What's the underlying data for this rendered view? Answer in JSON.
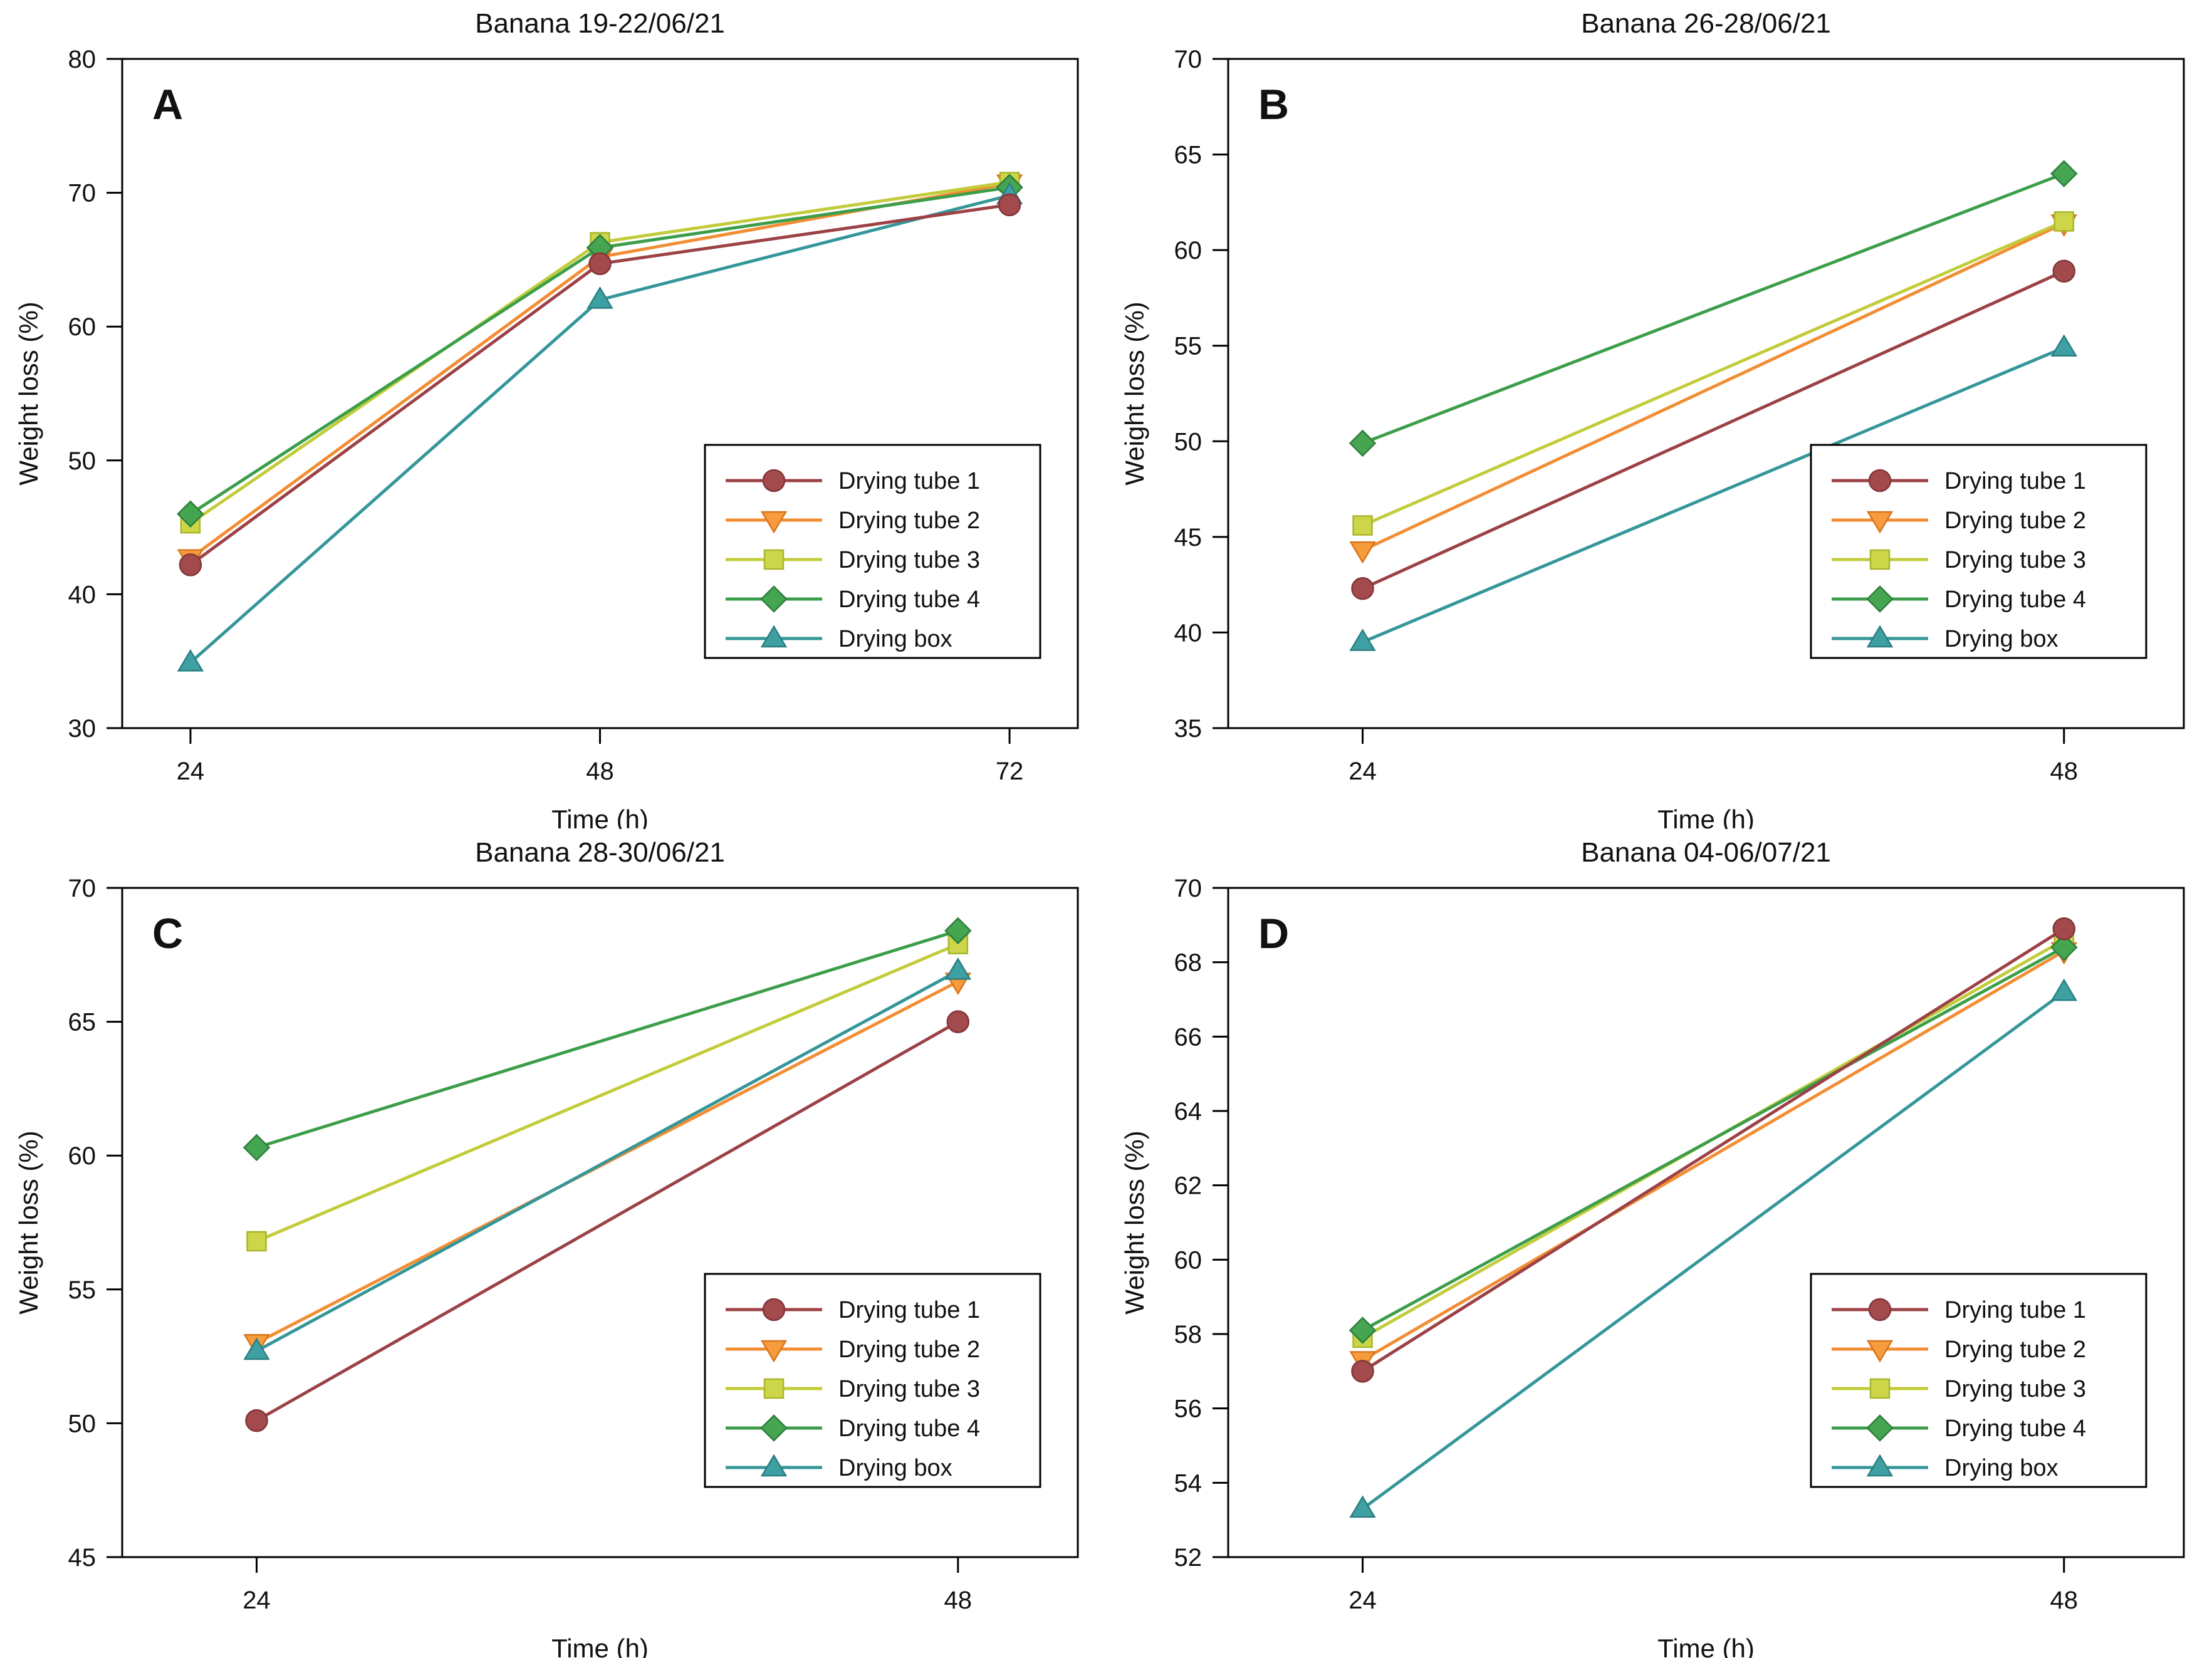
{
  "figure": {
    "background": "#ffffff",
    "x_axis_label": "Time (h)",
    "y_axis_label": "Weight loss (%)"
  },
  "series_defs": [
    {
      "name": "Drying tube 1",
      "marker": "circle",
      "line_color": "#9c4145",
      "marker_fill": "#a34a4c",
      "marker_stroke": "#84353a"
    },
    {
      "name": "Drying tube 2",
      "marker": "triangle-down",
      "line_color": "#f28d33",
      "marker_fill": "#f79c3d",
      "marker_stroke": "#d9751c"
    },
    {
      "name": "Drying tube 3",
      "marker": "square",
      "line_color": "#c2cc3a",
      "marker_fill": "#ccd648",
      "marker_stroke": "#a9b52c"
    },
    {
      "name": "Drying tube 4",
      "marker": "diamond",
      "line_color": "#3c9e4a",
      "marker_fill": "#46a551",
      "marker_stroke": "#2d7f3c"
    },
    {
      "name": "Drying box",
      "marker": "triangle-up",
      "line_color": "#35969a",
      "marker_fill": "#3fa0a3",
      "marker_stroke": "#2a7f82"
    }
  ],
  "chart_data": [
    {
      "panel_label": "A",
      "type": "line",
      "title": "Banana 19-22/06/21",
      "xlabel": "Time (h)",
      "ylabel": "Weight loss (%)",
      "x": [
        24,
        48,
        72
      ],
      "xticks": [
        24,
        48,
        72
      ],
      "xlim": [
        20,
        76
      ],
      "ylim": [
        30,
        80
      ],
      "ytick_step": 10,
      "grid": false,
      "legend_position": "center-right",
      "series": [
        {
          "name": "Drying tube 1",
          "values": [
            42.2,
            64.7,
            69.1
          ]
        },
        {
          "name": "Drying tube 2",
          "values": [
            42.7,
            65.2,
            70.7
          ]
        },
        {
          "name": "Drying tube 3",
          "values": [
            45.3,
            66.3,
            70.8
          ]
        },
        {
          "name": "Drying tube 4",
          "values": [
            46.0,
            65.9,
            70.4
          ]
        },
        {
          "name": "Drying box",
          "values": [
            34.9,
            62.0,
            69.8
          ]
        }
      ]
    },
    {
      "panel_label": "B",
      "type": "line",
      "title": "Banana 26-28/06/21",
      "xlabel": "Time (h)",
      "ylabel": "Weight loss (%)",
      "x": [
        24,
        48
      ],
      "xticks": [
        24,
        48
      ],
      "xlim": [
        19.4,
        52.1
      ],
      "ylim": [
        35,
        70
      ],
      "ytick_step": 5,
      "grid": false,
      "legend_position": "center-right",
      "series": [
        {
          "name": "Drying tube 1",
          "values": [
            42.3,
            58.9
          ]
        },
        {
          "name": "Drying tube 2",
          "values": [
            44.3,
            61.4
          ]
        },
        {
          "name": "Drying tube 3",
          "values": [
            45.6,
            61.5
          ]
        },
        {
          "name": "Drying tube 4",
          "values": [
            49.9,
            64.0
          ]
        },
        {
          "name": "Drying box",
          "values": [
            39.5,
            54.9
          ]
        }
      ]
    },
    {
      "panel_label": "C",
      "type": "line",
      "title": "Banana 28-30/06/21",
      "xlabel": "Time (h)",
      "ylabel": "Weight loss (%)",
      "x": [
        24,
        48
      ],
      "xticks": [
        24,
        48
      ],
      "xlim": [
        19.4,
        52.1
      ],
      "ylim": [
        45,
        70
      ],
      "ytick_step": 5,
      "grid": false,
      "legend_position": "center-right",
      "series": [
        {
          "name": "Drying tube 1",
          "values": [
            50.1,
            65.0
          ]
        },
        {
          "name": "Drying tube 2",
          "values": [
            53.0,
            66.5
          ]
        },
        {
          "name": "Drying tube 3",
          "values": [
            56.8,
            67.9
          ]
        },
        {
          "name": "Drying tube 4",
          "values": [
            60.3,
            68.4
          ]
        },
        {
          "name": "Drying box",
          "values": [
            52.7,
            66.9
          ]
        }
      ]
    },
    {
      "panel_label": "D",
      "type": "line",
      "title": "Banana 04-06/07/21",
      "xlabel": "Time (h)",
      "ylabel": "Weight loss (%)",
      "x": [
        24,
        48
      ],
      "xticks": [
        24,
        48
      ],
      "xlim": [
        19.4,
        52.1
      ],
      "ylim": [
        52,
        70
      ],
      "ytick_step": 2,
      "grid": false,
      "legend_position": "center-right",
      "series": [
        {
          "name": "Drying tube 1",
          "values": [
            57.0,
            68.9
          ]
        },
        {
          "name": "Drying tube 2",
          "values": [
            57.3,
            68.3
          ]
        },
        {
          "name": "Drying tube 3",
          "values": [
            57.9,
            68.6
          ]
        },
        {
          "name": "Drying tube 4",
          "values": [
            58.1,
            68.4
          ]
        },
        {
          "name": "Drying box",
          "values": [
            53.3,
            67.2
          ]
        }
      ]
    }
  ]
}
